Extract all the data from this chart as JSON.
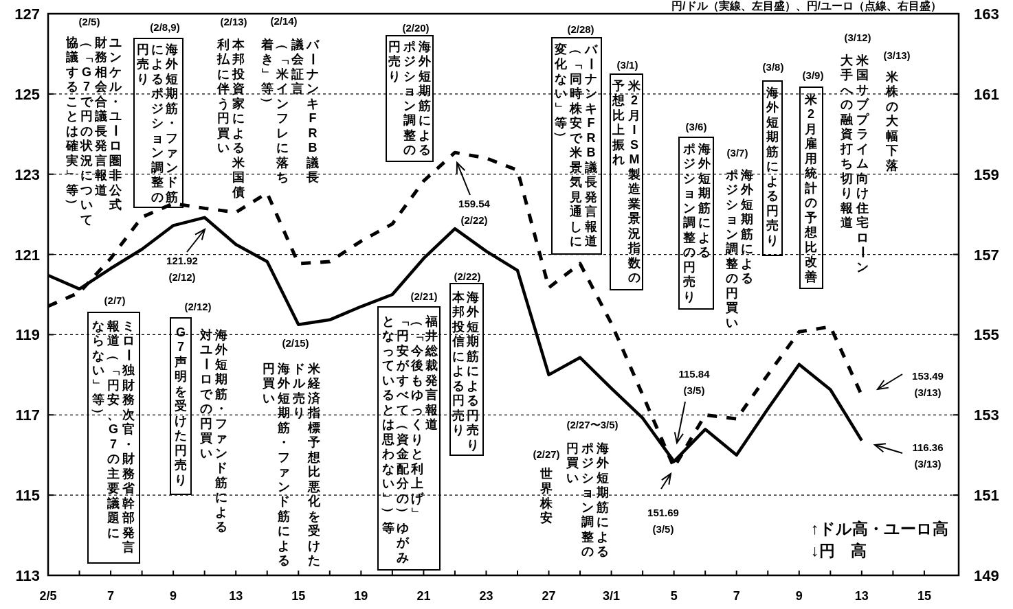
{
  "chart_data": {
    "type": "line",
    "title": "円/ドル（実線、左目盛）、円/ユーロ（点線、右目盛）",
    "categories": [
      "2/5",
      null,
      "7",
      null,
      "9",
      null,
      "13",
      null,
      "15",
      null,
      "19",
      null,
      "21",
      null,
      "23",
      null,
      "27",
      null,
      "3/1",
      null,
      "5",
      null,
      "7",
      null,
      "9",
      null,
      "13",
      null,
      "15"
    ],
    "series": [
      {
        "color": "#000000",
        "line_style": "solid",
        "values": [
          120.48,
          120.14,
          120.65,
          121.13,
          121.72,
          121.92,
          121.25,
          120.82,
          119.25,
          119.37,
          119.7,
          120.0,
          120.9,
          121.64,
          121.08,
          120.6,
          118.0,
          118.43,
          117.66,
          116.92,
          115.84,
          116.64,
          116.0,
          117.15,
          118.26,
          117.63,
          116.36,
          null,
          null
        ]
      },
      {
        "color": "#000000",
        "line_style": "dashed",
        "axis": "y2",
        "values": [
          155.71,
          156.05,
          156.9,
          157.93,
          158.27,
          158.15,
          158.05,
          158.53,
          156.77,
          156.82,
          157.33,
          157.76,
          158.83,
          159.54,
          159.4,
          159.1,
          156.17,
          156.77,
          155.28,
          153.5,
          151.69,
          153.0,
          152.9,
          154.0,
          155.07,
          155.2,
          153.49,
          null,
          null
        ]
      }
    ],
    "ylim": [
      113,
      127
    ],
    "yticks": [
      113,
      115,
      117,
      119,
      121,
      123,
      125,
      127
    ],
    "y2lim": [
      149,
      163
    ],
    "y2ticks": [
      149,
      151,
      153,
      155,
      157,
      159,
      161,
      163
    ],
    "grid": "y",
    "marker": "none",
    "annotations": [
      "(2/5)",
      "ユンケル・ユーロ圏非公式",
      "財務相会合議長発言報道",
      "（「G7で円の状況について",
      "協議することは確実」等）",
      "(2/8,9)",
      "海外短期筋・ファンド筋",
      "によるポジション調整の",
      "円売り",
      "(2/13)",
      "本邦投資家による米国債",
      "利払に伴う円買い",
      "(2/14)",
      "バーナンキFRB議長",
      "議会証言",
      "（「米インフレに落ち",
      "着き」等）",
      "(2/20)",
      "海外短期筋による",
      "ポジション調整の",
      "円売り",
      "(2/28)",
      "バーナンキFRB議長発言報道",
      "（「同時株安で米景気見通しに",
      "変化ない」等）",
      "(3/1)",
      "米2月ISM製造業景況指数の",
      "予想比上振れ",
      "(3/6)",
      "海外短期筋による",
      "ポジション調整の円売り",
      "(3/7)",
      "海外短期筋による",
      "ポジション調整の円買い",
      "(3/8)",
      "海外短期筋による円売り",
      "(3/9)",
      "米2月雇用統計の予想比改善",
      "(3/12)",
      "米国サブプライム向け住宅ローン",
      "大手への融資打ち切り報道",
      "(3/13)",
      "米株の大幅下落",
      "(2/7)",
      "ミロー独財務次官・財務省幹部発言",
      "報道（「円安、G7の主要議題に",
      "ならない」等）",
      "(2/12)",
      "G7声明を受けた円売り",
      "海外短期筋・ファンド筋による",
      "対ユーロでの円買い",
      "(2/15)",
      "米経済指標予想比悪化を受けた",
      "ドル売り",
      "海外短期筋・ファンド筋による",
      "円買い",
      "(2/21)",
      "福井総裁発言報道",
      "（「今後もゆっくりと利上げ」",
      "「円安がすべて（資金配分の）ゆがみ",
      "となっているとは思わない」）等",
      "(2/22)",
      "海外短期筋による円売り",
      "本邦投信による円売り",
      "(2/27)",
      "世界株安",
      "(2/27〜3/5)",
      "海外短期筋による",
      "ポジション調整の",
      "円買い",
      "121.92\n(2/12)",
      "159.54\n(2/22)",
      "115.84\n(3/5)",
      "151.69\n(3/5)",
      "153.49\n(3/13)",
      "116.36\n(3/13)",
      "↑ドル高・ユーロ高",
      "↓円　高"
    ]
  }
}
